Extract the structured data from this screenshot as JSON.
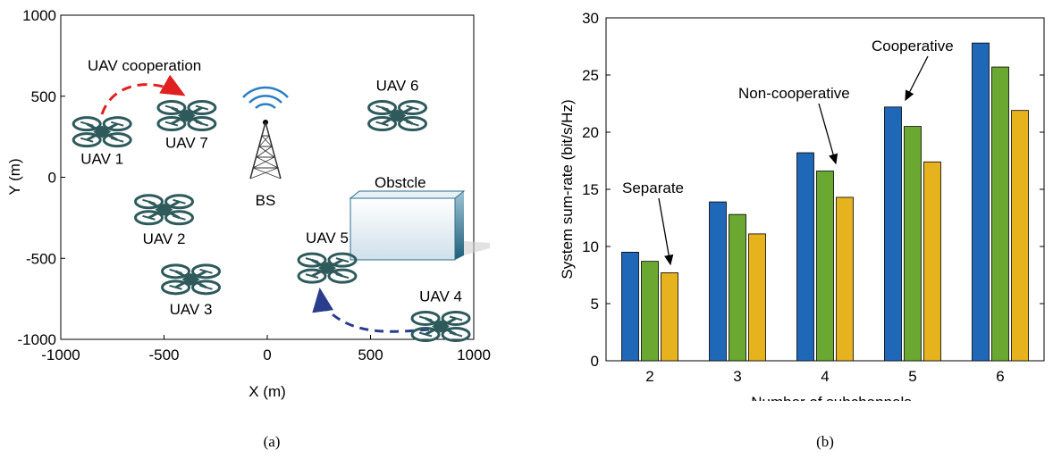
{
  "chart_data": [
    {
      "type": "scatter",
      "xlabel": "X (m)",
      "ylabel": "Y (m)",
      "xlim": [
        -1000,
        1000
      ],
      "ylim": [
        -1000,
        1000
      ],
      "xticks": [
        "-1000",
        "-500",
        "0",
        "500",
        "1000"
      ],
      "yticks": [
        "1000",
        "500",
        "0",
        "-500",
        "-1000"
      ],
      "grid": false,
      "nodes": [
        {
          "label": "UAV 1",
          "x": -800,
          "y": 280,
          "icon": "drone-icon"
        },
        {
          "label": "UAV 7",
          "x": -390,
          "y": 380,
          "icon": "drone-icon"
        },
        {
          "label": "UAV 6",
          "x": 630,
          "y": 380,
          "icon": "drone-icon"
        },
        {
          "label": "UAV 2",
          "x": -500,
          "y": -200,
          "icon": "drone-icon"
        },
        {
          "label": "UAV 5",
          "x": 290,
          "y": -560,
          "icon": "drone-icon"
        },
        {
          "label": "UAV 3",
          "x": -370,
          "y": -630,
          "icon": "drone-icon"
        },
        {
          "label": "UAV 4",
          "x": 840,
          "y": -920,
          "icon": "drone-icon"
        }
      ],
      "base_station": {
        "label": "BS",
        "x": 0,
        "y": 350,
        "icon": "tower-icon"
      },
      "obstacle": {
        "label": "Obstcle",
        "x1": 520,
        "x2": 1160,
        "y1": -500,
        "y2": -120
      },
      "annotations": {
        "cooperation_text": "UAV cooperation"
      },
      "colors": {
        "drone": "#2e5a5c",
        "red_arrow": "#e02020",
        "blue_arrow": "#2a3c8c"
      },
      "caption": "(a)"
    },
    {
      "type": "bar",
      "xlabel": "Number of subchannels",
      "ylabel": "System sum-rate (bit/s/Hz)",
      "categories": [
        "2",
        "3",
        "4",
        "5",
        "6"
      ],
      "ylim": [
        0,
        30
      ],
      "yticks": [
        "0",
        "5",
        "10",
        "15",
        "20",
        "25",
        "30"
      ],
      "series": [
        {
          "name": "Cooperative",
          "color": "#1f68b8",
          "values": [
            9.5,
            13.9,
            18.2,
            22.2,
            27.8
          ]
        },
        {
          "name": "Non-cooperative",
          "color": "#6aa832",
          "values": [
            8.7,
            12.8,
            16.6,
            20.5,
            25.7
          ]
        },
        {
          "name": "Separate",
          "color": "#e6b21e",
          "values": [
            7.7,
            11.1,
            14.3,
            17.4,
            21.9
          ]
        }
      ],
      "annotations": {
        "cooperative": "Cooperative",
        "noncooperative": "Non-cooperative",
        "separate": "Separate"
      },
      "caption": "(b)"
    }
  ]
}
